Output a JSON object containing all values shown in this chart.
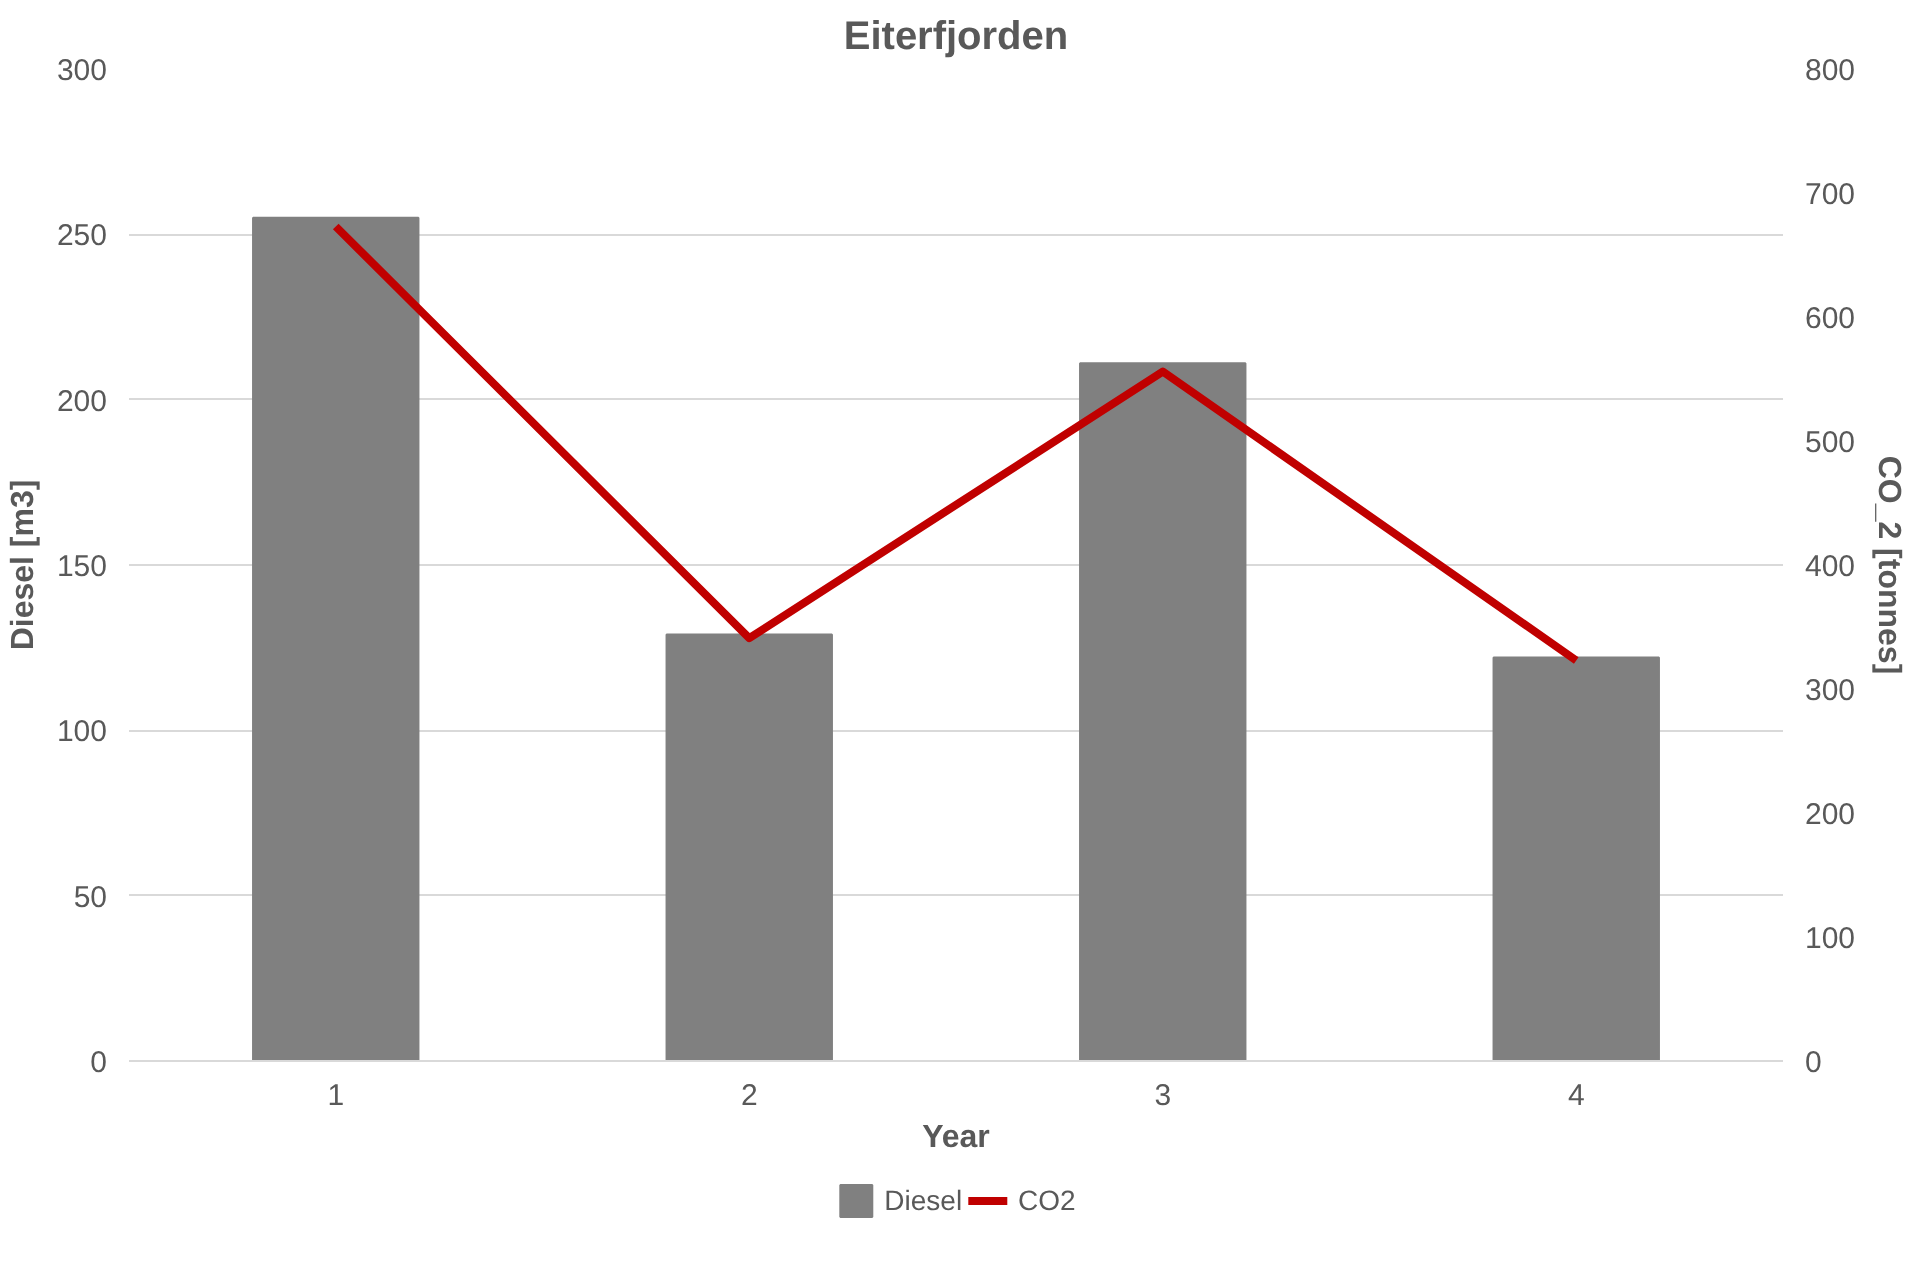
{
  "chart_data": {
    "type": "bar",
    "title": "Eiterfjorden",
    "xlabel": "Year",
    "ylabel": "Diesel [m3]",
    "y2label": "CO_2 [tonnes]",
    "categories": [
      "1",
      "2",
      "3",
      "4"
    ],
    "series": [
      {
        "name": "Diesel",
        "color": "#808080",
        "values": [
          255,
          129,
          211,
          122
        ]
      },
      {
        "name": "CO2",
        "color": "#c00000",
        "type": "line",
        "axis": "y2",
        "values": [
          673,
          341,
          556,
          323
        ]
      }
    ],
    "ylim": [
      0,
      300
    ],
    "yticks": [
      0,
      50,
      100,
      150,
      200,
      250,
      300
    ],
    "y2lim": [
      0,
      800
    ],
    "y2ticks": [
      0,
      100,
      200,
      300,
      400,
      500,
      600,
      700,
      800
    ],
    "grid": "y",
    "legend": "bottom",
    "marker": "none",
    "line_style": "solid"
  }
}
